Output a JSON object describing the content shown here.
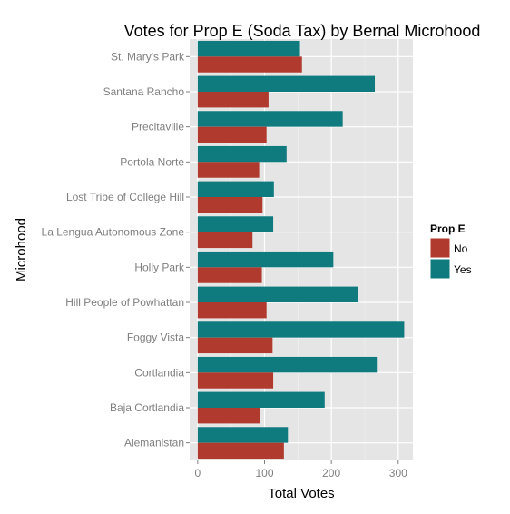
{
  "chart_data": {
    "type": "bar",
    "orientation": "horizontal",
    "title": "Votes for Prop E (Soda Tax) by Bernal Microhood",
    "xlabel": "Total Votes",
    "ylabel": "Microhood",
    "xlim": [
      -12,
      322
    ],
    "xticks": [
      0,
      100,
      200,
      300
    ],
    "grid": true,
    "legend": {
      "title": "Prop E",
      "position": "right"
    },
    "categories": [
      "St. Mary's Park",
      "Santana Rancho",
      "Precitaville",
      "Portola Norte",
      "Lost Tribe of College Hill",
      "La Lengua Autonomous Zone",
      "Holly Park",
      "Hill People of Powhattan",
      "Foggy Vista",
      "Cortlandia",
      "Baja Cortlandia",
      "Alemanistan"
    ],
    "series": [
      {
        "name": "No",
        "color": "#b03a2e",
        "values": [
          156,
          106,
          103,
          92,
          97,
          82,
          96,
          103,
          112,
          113,
          93,
          129
        ]
      },
      {
        "name": "Yes",
        "color": "#0f7b7f",
        "values": [
          153,
          265,
          217,
          133,
          114,
          113,
          203,
          240,
          309,
          268,
          190,
          135
        ]
      }
    ]
  }
}
